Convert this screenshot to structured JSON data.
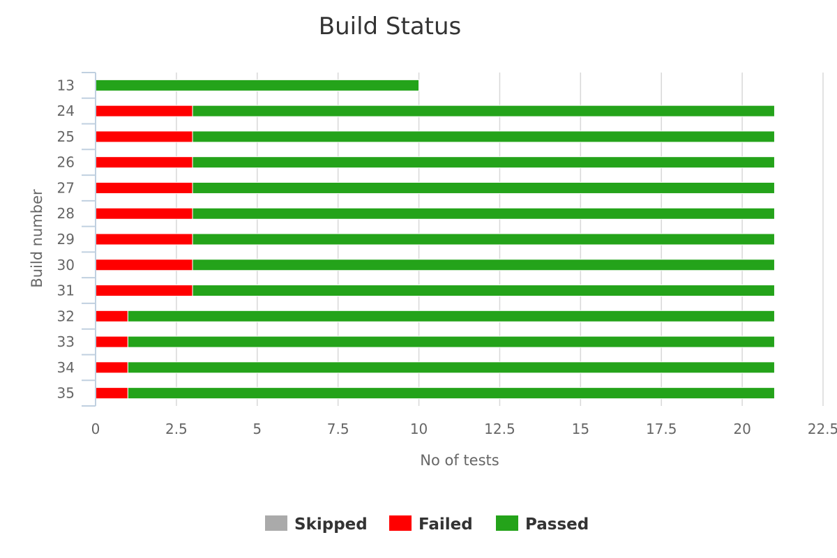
{
  "chart_data": {
    "type": "bar",
    "orientation": "horizontal",
    "stacked": true,
    "title": "Build Status",
    "xlabel": "No of tests",
    "ylabel": "Build number",
    "categories": [
      "13",
      "24",
      "25",
      "26",
      "27",
      "28",
      "29",
      "30",
      "31",
      "32",
      "33",
      "34",
      "35"
    ],
    "xlim": [
      0,
      22.5
    ],
    "xticks": [
      "0",
      "2.5",
      "5",
      "7.5",
      "10",
      "12.5",
      "15",
      "17.5",
      "20",
      "22.5"
    ],
    "grid": true,
    "legend_position": "bottom-center",
    "series": [
      {
        "name": "Skipped",
        "color": "#aaaaaa",
        "values": [
          0,
          0,
          0,
          0,
          0,
          0,
          0,
          0,
          0,
          0,
          0,
          0,
          0
        ]
      },
      {
        "name": "Failed",
        "color": "#ff0000",
        "values": [
          0,
          3,
          3,
          3,
          3,
          3,
          3,
          3,
          3,
          1,
          1,
          1,
          1
        ]
      },
      {
        "name": "Passed",
        "color": "#24a31a",
        "values": [
          10,
          18,
          18,
          18,
          18,
          18,
          18,
          18,
          18,
          20,
          20,
          20,
          20
        ]
      }
    ]
  }
}
